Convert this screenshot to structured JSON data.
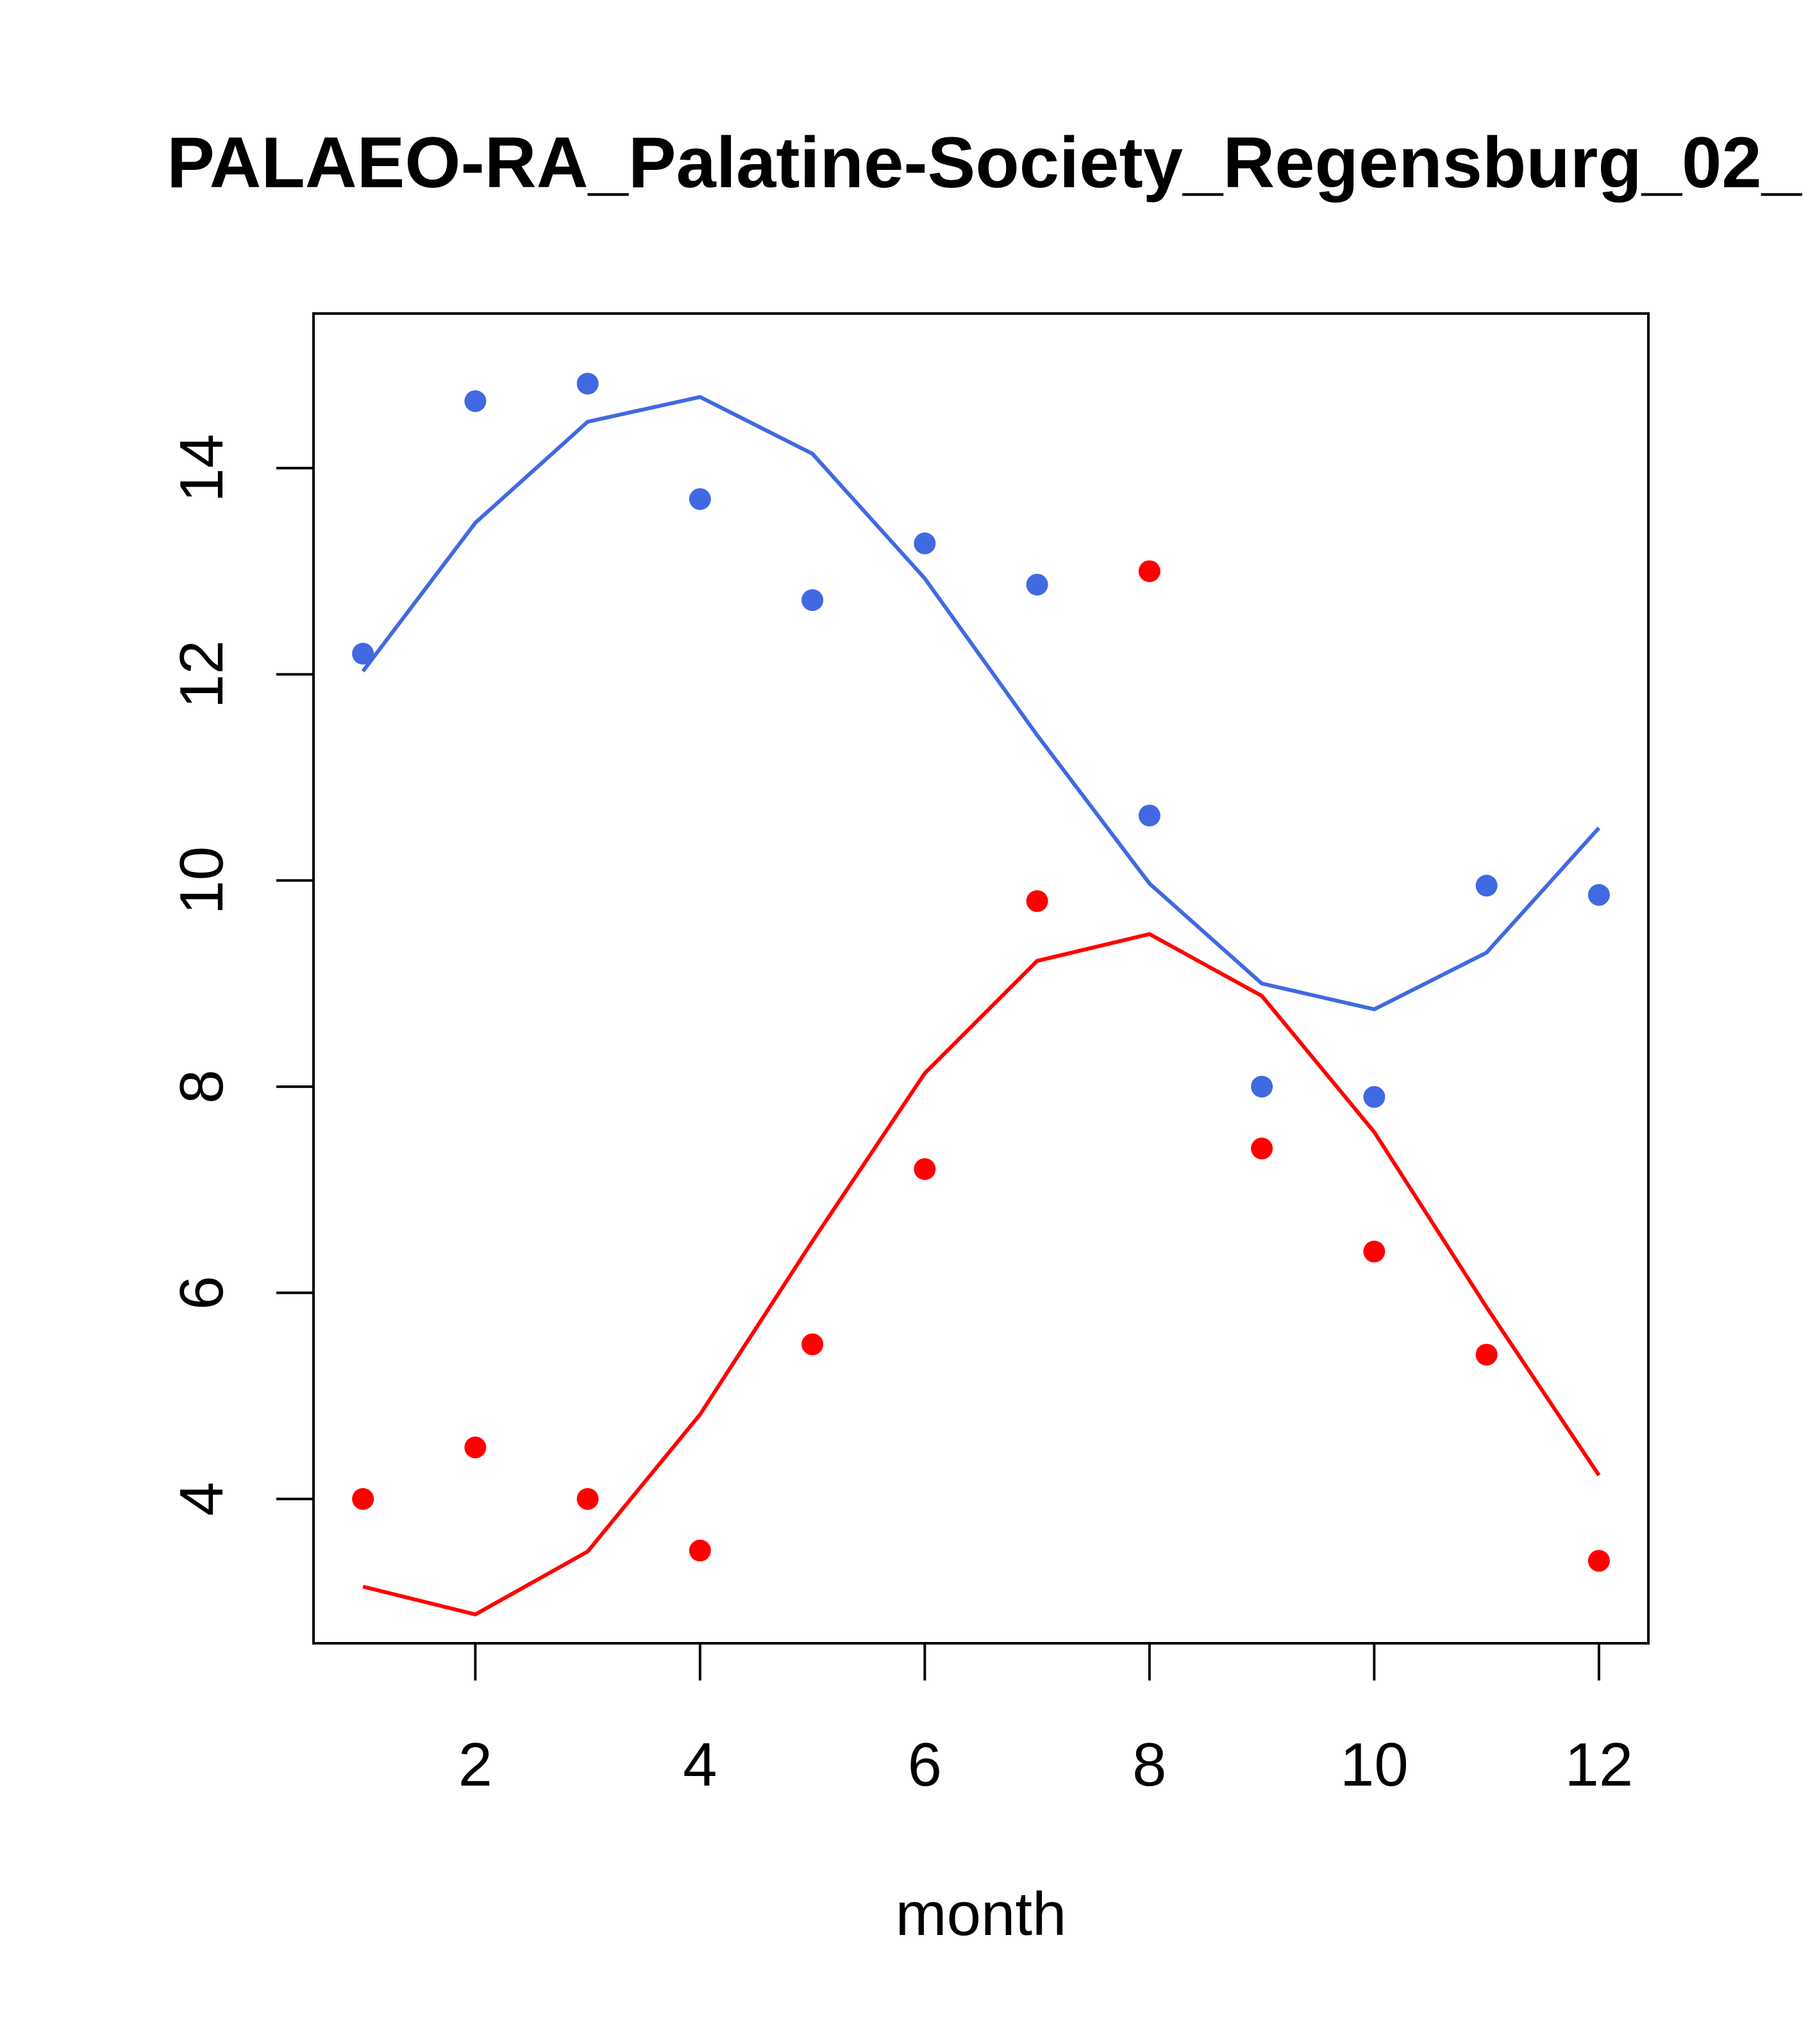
{
  "chart_data": {
    "type": "line",
    "title": "PALAEO-RA_Palatine-Society_Regensburg_02_",
    "xlabel": "month",
    "ylabel": "",
    "xlim": [
      0.56,
      12.44
    ],
    "ylim": [
      2.6,
      15.5
    ],
    "xticks": [
      2,
      4,
      6,
      8,
      10,
      12
    ],
    "yticks": [
      4,
      6,
      8,
      10,
      12,
      14
    ],
    "x": [
      1,
      2,
      3,
      4,
      5,
      6,
      7,
      8,
      9,
      10,
      11,
      12
    ],
    "series": [
      {
        "name": "blue-points",
        "kind": "points",
        "color": "#4169e1",
        "values": [
          12.2,
          14.65,
          14.82,
          13.7,
          12.72,
          13.27,
          12.87,
          10.63,
          8.0,
          7.9,
          9.95,
          9.86
        ]
      },
      {
        "name": "blue-curve",
        "kind": "line",
        "color": "#4169e1",
        "values": [
          12.03,
          13.47,
          14.45,
          14.69,
          14.14,
          12.93,
          11.41,
          9.97,
          9.0,
          8.75,
          9.3,
          10.51
        ]
      },
      {
        "name": "red-points",
        "kind": "points",
        "color": "#ff0000",
        "values": [
          4.0,
          4.5,
          4.0,
          3.5,
          5.5,
          7.2,
          9.8,
          13.0,
          7.4,
          6.4,
          5.4,
          3.4
        ]
      },
      {
        "name": "red-curve",
        "kind": "line",
        "color": "#ff0000",
        "values": [
          3.15,
          2.88,
          3.49,
          4.82,
          6.5,
          8.13,
          9.22,
          9.48,
          8.88,
          7.56,
          5.86,
          4.23
        ]
      }
    ]
  }
}
